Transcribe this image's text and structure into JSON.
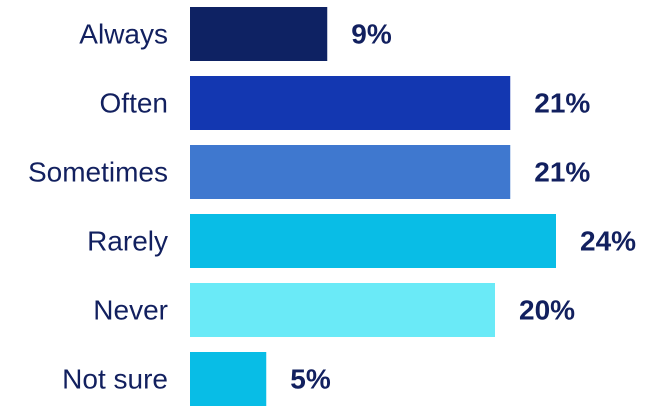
{
  "chart_data": {
    "type": "bar",
    "orientation": "horizontal",
    "categories": [
      "Always",
      "Often",
      "Sometimes",
      "Rarely",
      "Never",
      "Not sure"
    ],
    "values": [
      9,
      21,
      21,
      24,
      20,
      5
    ],
    "value_labels": [
      "9%",
      "21%",
      "21%",
      "24%",
      "20%",
      "5%"
    ],
    "unit": "%",
    "colors": [
      "#0e2263",
      "#1337b1",
      "#3f78cf",
      "#09bde6",
      "#6aeaf7",
      "#08bde6"
    ],
    "label_color": "#12205f",
    "title": "",
    "xlabel": "",
    "ylabel": "",
    "xlim": [
      0,
      24
    ],
    "grid": false,
    "legend": "none"
  }
}
